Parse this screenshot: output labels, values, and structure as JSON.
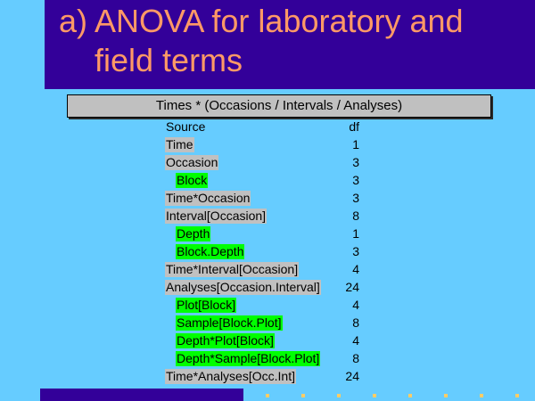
{
  "slide": {
    "title_line1": "a) ANOVA for laboratory and",
    "title_line2": "field terms",
    "table_header": "Times * (Occasions / Intervals / Analyses)",
    "column_source": "Source",
    "column_df": "df",
    "rows": [
      {
        "source": "Time",
        "df": "1",
        "level": 0,
        "highlight": "grey"
      },
      {
        "source": "Occasion",
        "df": "3",
        "level": 0,
        "highlight": "grey"
      },
      {
        "source": "Block",
        "df": "3",
        "level": 1,
        "highlight": "green"
      },
      {
        "source": "Time*Occasion",
        "df": "3",
        "level": 0,
        "highlight": "grey"
      },
      {
        "source": "Interval[Occasion]",
        "df": "8",
        "level": 0,
        "highlight": "grey"
      },
      {
        "source": "Depth",
        "df": "1",
        "level": 1,
        "highlight": "green"
      },
      {
        "source": "Block.Depth",
        "df": "3",
        "level": 1,
        "highlight": "green"
      },
      {
        "source": "Time*Interval[Occasion]",
        "df": "4",
        "level": 0,
        "highlight": "grey"
      },
      {
        "source": "Analyses[Occasion.Interval]",
        "df": "24",
        "level": 0,
        "highlight": "grey"
      },
      {
        "source": "Plot[Block]",
        "df": "4",
        "level": 1,
        "highlight": "green"
      },
      {
        "source": "Sample[Block.Plot]",
        "df": "8",
        "level": 1,
        "highlight": "green"
      },
      {
        "source": "Depth*Plot[Block]",
        "df": "4",
        "level": 1,
        "highlight": "green"
      },
      {
        "source": "Depth*Sample[Block.Plot]",
        "df": "8",
        "level": 1,
        "highlight": "green"
      },
      {
        "source": "Time*Analyses[Occ.Int]",
        "df": "24",
        "level": 0,
        "highlight": "grey"
      }
    ]
  },
  "colors": {
    "background": "#66ccff",
    "title_band": "#330099",
    "title_text": "#ff9966",
    "header_fill": "#c0c0c0",
    "grey_highlight": "#c0c0c0",
    "green_highlight": "#00ff00",
    "dot_accent": "#ffcc66"
  }
}
